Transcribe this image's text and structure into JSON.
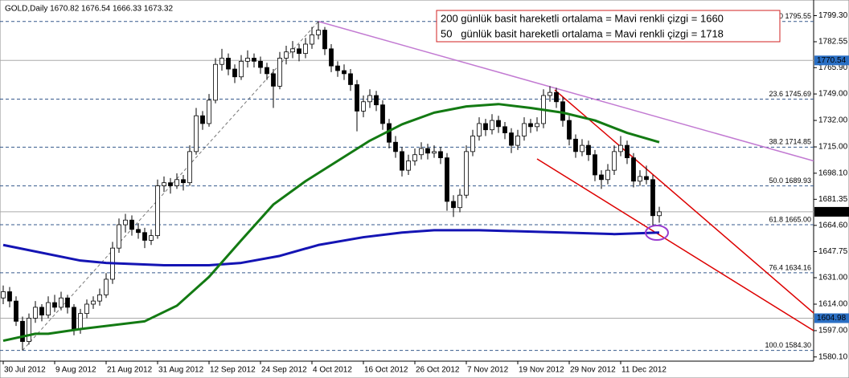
{
  "chart_data": {
    "type": "candlestick",
    "title": "GOLD,Daily  1670.82 1676.54 1666.33 1673.32",
    "annotations": [
      "200 günlük basit hareketli ortalama = Mavi renkli çizgi = 1660",
      "50   günlük basit hareketli ortalama = Mavi renkli çizgi = 1718"
    ],
    "categories": [
      "30 Jul 2012",
      null,
      null,
      null,
      null,
      null,
      null,
      null,
      "9 Aug 2012",
      null,
      null,
      null,
      null,
      null,
      null,
      null,
      "21 Aug 2012",
      null,
      null,
      null,
      null,
      null,
      null,
      null,
      "31 Aug 2012",
      null,
      null,
      null,
      null,
      null,
      null,
      null,
      "12 Sep 2012",
      null,
      null,
      null,
      null,
      null,
      null,
      null,
      "24 Sep 2012",
      null,
      null,
      null,
      null,
      null,
      null,
      null,
      "4 Oct 2012",
      null,
      null,
      null,
      null,
      null,
      null,
      null,
      "16 Oct 2012",
      null,
      null,
      null,
      null,
      null,
      null,
      null,
      "26 Oct 2012",
      null,
      null,
      null,
      null,
      null,
      null,
      null,
      "7 Nov 2012",
      null,
      null,
      null,
      null,
      null,
      null,
      null,
      "19 Nov 2012",
      null,
      null,
      null,
      null,
      null,
      null,
      null,
      "29 Nov 2012",
      null,
      null,
      null,
      null,
      null,
      null,
      null,
      "11 Dec 2012",
      null,
      null,
      null,
      null,
      null,
      null
    ],
    "open": [
      1618,
      1622,
      1616,
      1603,
      1590,
      1605,
      1612,
      1607,
      1615,
      1612,
      1618,
      1612,
      1598,
      1608,
      1614,
      1616,
      1620,
      1630,
      1650,
      1665,
      1668,
      1662,
      1660,
      1655,
      1658,
      1690,
      1692,
      1690,
      1694,
      1692,
      1712,
      1735,
      1730,
      1745,
      1768,
      1772,
      1765,
      1760,
      1770,
      1772,
      1770,
      1766,
      1762,
      1754,
      1772,
      1776,
      1778,
      1775,
      1781,
      1787,
      1790,
      1778,
      1767,
      1764,
      1762,
      1755,
      1738,
      1744,
      1748,
      1742,
      1730,
      1718,
      1712,
      1700,
      1706,
      1710,
      1714,
      1711,
      1712,
      1708,
      1680,
      1676,
      1684,
      1712,
      1722,
      1730,
      1726,
      1732,
      1728,
      1724,
      1716,
      1722,
      1730,
      1728,
      1730,
      1748,
      1750,
      1744,
      1732,
      1720,
      1712,
      1716,
      1710,
      1697,
      1694,
      1700,
      1712,
      1716,
      1708,
      1693,
      1696,
      1694,
      1670.82
    ],
    "high": [
      1626,
      1625,
      1619,
      1606,
      1608,
      1616,
      1614,
      1619,
      1620,
      1622,
      1620,
      1614,
      1611,
      1617,
      1619,
      1624,
      1634,
      1654,
      1669,
      1672,
      1671,
      1666,
      1663,
      1662,
      1694,
      1696,
      1695,
      1698,
      1697,
      1716,
      1740,
      1738,
      1749,
      1772,
      1778,
      1775,
      1768,
      1774,
      1777,
      1775,
      1773,
      1769,
      1765,
      1776,
      1780,
      1783,
      1781,
      1785,
      1792,
      1795.55,
      1792,
      1781,
      1770,
      1768,
      1765,
      1758,
      1748,
      1752,
      1751,
      1745,
      1733,
      1722,
      1715,
      1710,
      1714,
      1718,
      1717,
      1716,
      1715,
      1711,
      1684,
      1688,
      1716,
      1726,
      1734,
      1733,
      1736,
      1735,
      1731,
      1727,
      1726,
      1734,
      1733,
      1734,
      1752,
      1754,
      1753,
      1747,
      1735,
      1723,
      1720,
      1719,
      1713,
      1700,
      1704,
      1716,
      1722,
      1719,
      1711,
      1700,
      1703,
      1697,
      1676.54
    ],
    "low": [
      1614,
      1612,
      1600,
      1584.3,
      1588,
      1602,
      1603,
      1605,
      1609,
      1610,
      1608,
      1594,
      1595,
      1605,
      1611,
      1613,
      1618,
      1627,
      1647,
      1660,
      1658,
      1656,
      1650,
      1652,
      1656,
      1686,
      1685,
      1688,
      1687,
      1690,
      1710,
      1726,
      1728,
      1743,
      1764,
      1761,
      1756,
      1758,
      1766,
      1766,
      1762,
      1758,
      1740,
      1752,
      1768,
      1772,
      1770,
      1772,
      1778,
      1784,
      1774,
      1763,
      1760,
      1758,
      1751,
      1725,
      1734,
      1740,
      1738,
      1726,
      1714,
      1708,
      1696,
      1697,
      1703,
      1707,
      1707,
      1708,
      1704,
      1674,
      1670,
      1673,
      1682,
      1709,
      1719,
      1722,
      1723,
      1724,
      1720,
      1711,
      1713,
      1719,
      1724,
      1725,
      1727,
      1744,
      1740,
      1728,
      1716,
      1708,
      1709,
      1706,
      1693,
      1688,
      1691,
      1697,
      1709,
      1704,
      1689,
      1690,
      1691,
      1664,
      1666.33
    ],
    "close": [
      1622,
      1616,
      1603,
      1590,
      1605,
      1612,
      1607,
      1615,
      1612,
      1618,
      1612,
      1598,
      1608,
      1614,
      1616,
      1620,
      1630,
      1650,
      1665,
      1668,
      1662,
      1660,
      1655,
      1658,
      1690,
      1692,
      1690,
      1694,
      1692,
      1712,
      1735,
      1730,
      1745,
      1768,
      1772,
      1765,
      1760,
      1770,
      1772,
      1770,
      1766,
      1762,
      1754,
      1772,
      1776,
      1778,
      1775,
      1781,
      1787,
      1790,
      1778,
      1767,
      1764,
      1762,
      1755,
      1738,
      1744,
      1748,
      1742,
      1730,
      1718,
      1712,
      1700,
      1706,
      1710,
      1714,
      1711,
      1712,
      1708,
      1680,
      1676,
      1684,
      1712,
      1722,
      1730,
      1726,
      1732,
      1728,
      1724,
      1716,
      1722,
      1730,
      1728,
      1730,
      1748,
      1750,
      1744,
      1732,
      1720,
      1712,
      1716,
      1710,
      1697,
      1694,
      1700,
      1712,
      1716,
      1708,
      1693,
      1696,
      1694,
      1670.82,
      1673.32
    ],
    "up_color": "#ffffff",
    "down_color": "#000000",
    "outline_color": "#000000",
    "moving_averages": [
      {
        "color": "#1414b4",
        "x": [
          0,
          12,
          16,
          25,
          32,
          37,
          43,
          49,
          56,
          62,
          67,
          74,
          87,
          95,
          102
        ],
        "values": [
          1652,
          1642,
          1640.5,
          1639,
          1639,
          1640.5,
          1645,
          1652,
          1657,
          1660,
          1661.5,
          1661.5,
          1660,
          1659,
          1660
        ]
      },
      {
        "color": "#137a13",
        "x": [
          0,
          5,
          7,
          12,
          22,
          27,
          32,
          37,
          42,
          47,
          52,
          57,
          62,
          67,
          72,
          77,
          82,
          87,
          92,
          97,
          102
        ],
        "values": [
          1590.5,
          1595,
          1595,
          1598,
          1603,
          1613,
          1631.5,
          1655,
          1678,
          1693,
          1706,
          1719,
          1729.5,
          1737,
          1741,
          1742.5,
          1740,
          1737,
          1732,
          1724,
          1718
        ]
      }
    ],
    "trend_lines": [
      {
        "color": "#c27ad2",
        "x": [
          49,
          126
        ],
        "values": [
          1795.55,
          1706
        ]
      },
      {
        "color": "#dd0000",
        "x": [
          85.75,
          126
        ],
        "values": [
          1751.6,
          1608.3
        ]
      },
      {
        "color": "#dd0000",
        "x": [
          83,
          126
        ],
        "values": [
          1707.3,
          1597
        ]
      }
    ],
    "fibonacci": {
      "color": "#36598c",
      "x": [
        3,
        49
      ],
      "values": [
        1584.3,
        1795.55
      ],
      "levels": [
        {
          "value": 1795.55,
          "label": "0.0 1795.55"
        },
        {
          "value": 1745.69,
          "label": "23.6 1745.69"
        },
        {
          "value": 1714.85,
          "label": "38.2 1714.85"
        },
        {
          "value": 1689.93,
          "label": "50.0 1689.93"
        },
        {
          "value": 1665.0,
          "label": "61.8 1665.00"
        },
        {
          "value": 1634.16,
          "label": "76.4 1634.16"
        },
        {
          "value": 1584.3,
          "label": "100.0 1584.30"
        }
      ]
    },
    "price_lines": [
      {
        "value": 1770.54,
        "color": "#2a6fc4"
      },
      {
        "value": 1673.32,
        "color": "#000000"
      },
      {
        "value": 1604.98,
        "color": "#2a6fc4"
      }
    ],
    "ylim": [
      1577.4,
      1809.35
    ],
    "yticks": [
      {
        "value": 1799.3,
        "label": "1799.30"
      },
      {
        "value": 1782.55,
        "label": "1782.55"
      },
      {
        "value": 1765.9,
        "label": "1765.90"
      },
      {
        "value": 1749.0,
        "label": "1749.00"
      },
      {
        "value": 1732.0,
        "label": "1732.00"
      },
      {
        "value": 1715.0,
        "label": "1715.00"
      },
      {
        "value": 1698.1,
        "label": "1698.10"
      },
      {
        "value": 1681.35,
        "label": "1681.35"
      },
      {
        "value": 1664.6,
        "label": "1664.60"
      },
      {
        "value": 1647.75,
        "label": "1647.75"
      },
      {
        "value": 1631.0,
        "label": "1631.00"
      },
      {
        "value": 1614.0,
        "label": "1614.00"
      },
      {
        "value": 1597.0,
        "label": "1597.00"
      },
      {
        "value": 1580.1,
        "label": "1580.10"
      }
    ]
  }
}
